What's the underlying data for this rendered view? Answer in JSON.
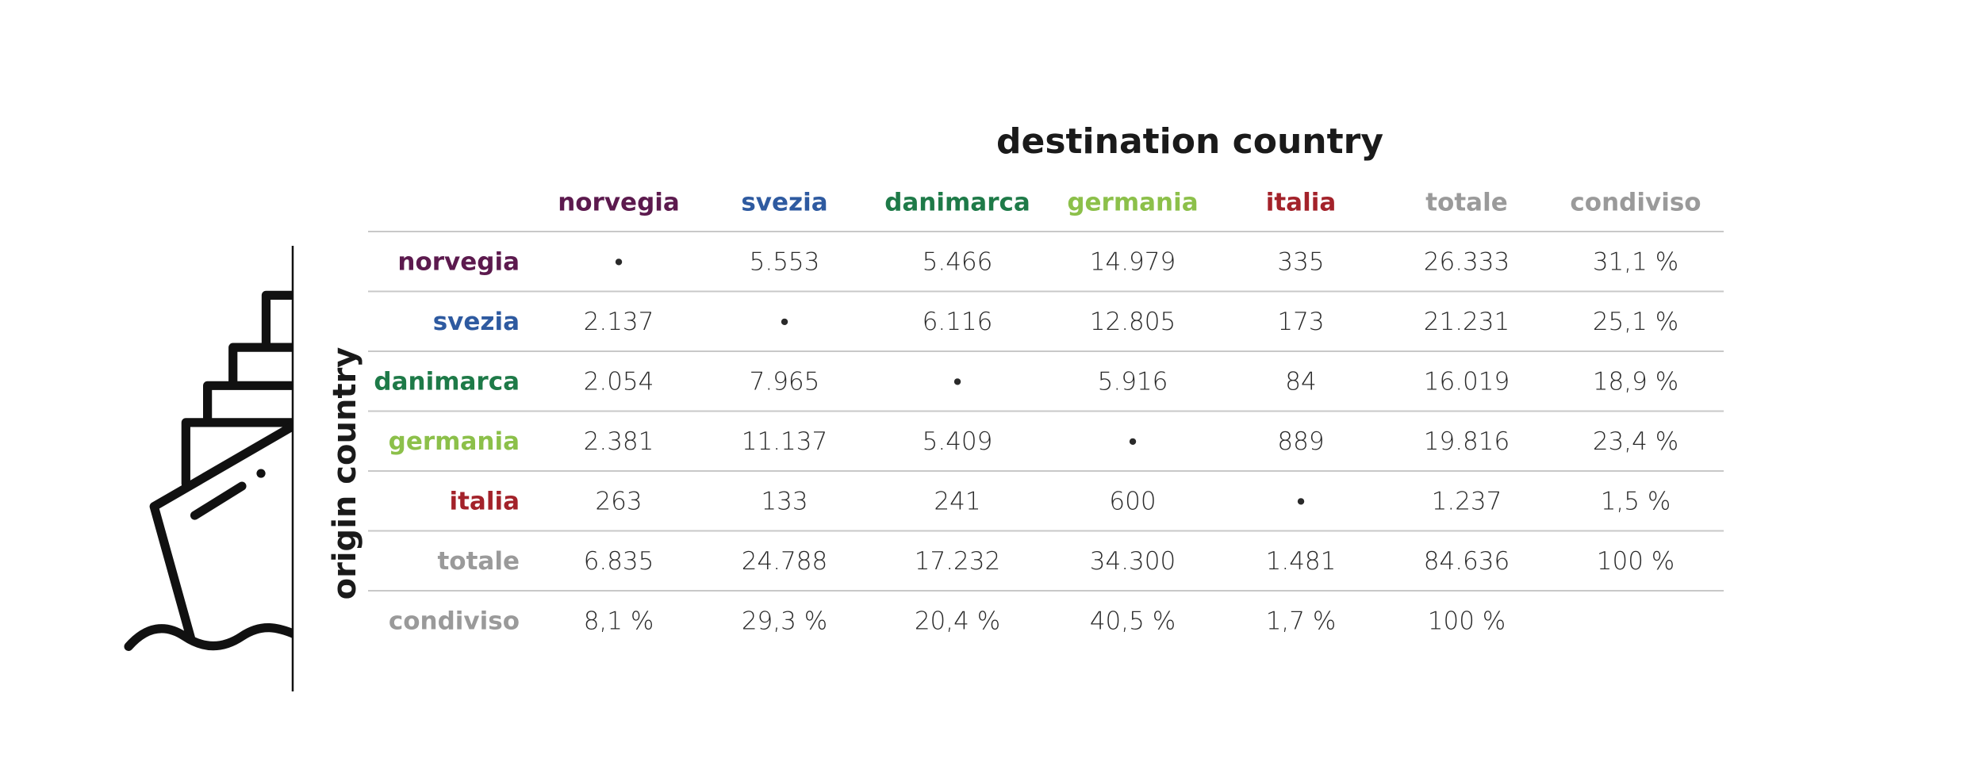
{
  "table": {
    "title": "destination country",
    "side_label": "origin country",
    "columns": [
      "norvegia",
      "svezia",
      "danimarca",
      "germania",
      "italia",
      "totale",
      "condiviso"
    ],
    "rows": [
      {
        "label": "norvegia",
        "cells": [
          "•",
          "5.553",
          "5.466",
          "14.979",
          "335",
          "26.333",
          "31,1 %"
        ]
      },
      {
        "label": "svezia",
        "cells": [
          "2.137",
          "•",
          "6.116",
          "12.805",
          "173",
          "21.231",
          "25,1 %"
        ]
      },
      {
        "label": "danimarca",
        "cells": [
          "2.054",
          "7.965",
          "•",
          "5.916",
          "84",
          "16.019",
          "18,9 %"
        ]
      },
      {
        "label": "germania",
        "cells": [
          "2.381",
          "11.137",
          "5.409",
          "•",
          "889",
          "19.816",
          "23,4 %"
        ]
      },
      {
        "label": "italia",
        "cells": [
          "263",
          "133",
          "241",
          "600",
          "•",
          "1.237",
          "1,5 %"
        ]
      },
      {
        "label": "totale",
        "cells": [
          "6.835",
          "24.788",
          "17.232",
          "34.300",
          "1.481",
          "84.636",
          "100 %"
        ]
      },
      {
        "label": "condiviso",
        "cells": [
          "8,1 %",
          "29,3 %",
          "20,4 %",
          "40,5 %",
          "1,7 %",
          "100 %"
        ]
      }
    ]
  }
}
